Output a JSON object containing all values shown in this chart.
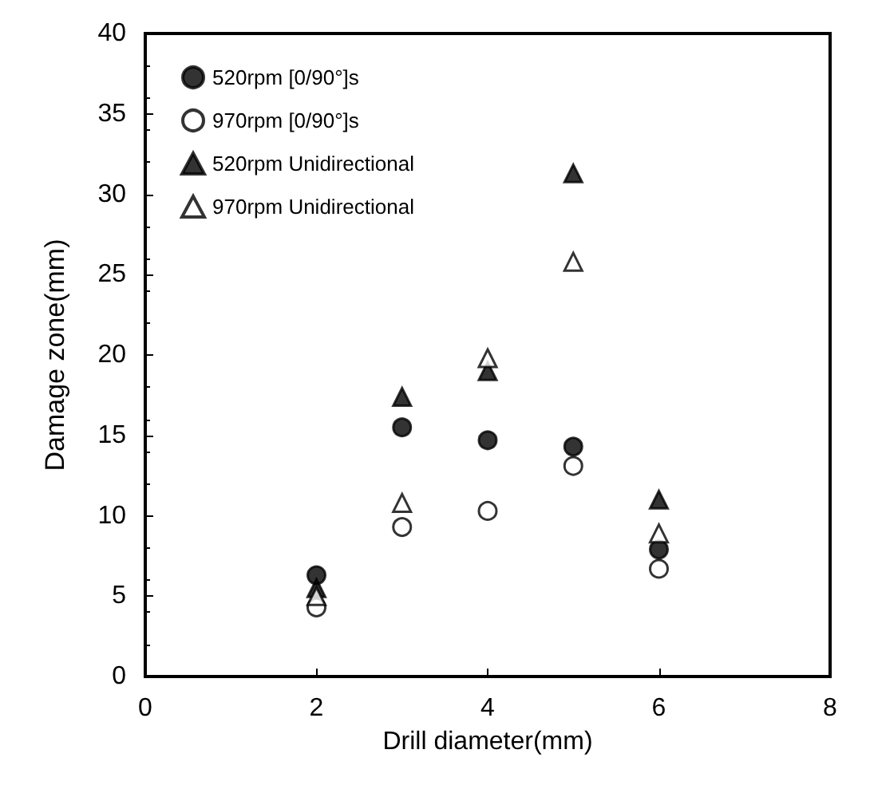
{
  "chart_data": {
    "type": "scatter",
    "xlabel": "Drill diameter(mm)",
    "ylabel": "Damage zone(mm)",
    "x": [
      2,
      3,
      4,
      5,
      6
    ],
    "xlim": [
      0,
      8
    ],
    "xticks": [
      0,
      2,
      4,
      6,
      8
    ],
    "ylim": [
      0,
      40
    ],
    "yticks": [
      0,
      5,
      10,
      15,
      20,
      25,
      30,
      35,
      40
    ],
    "grid": false,
    "legend": "top left",
    "series": [
      {
        "name": "520rpm [0/90°]s",
        "color": "#000000",
        "marker": "circle",
        "values": [
          6.3,
          15.5,
          14.7,
          14.3,
          7.9
        ]
      },
      {
        "name": "970rpm [0/90°]s",
        "color": "#ffffff",
        "marker": "circle",
        "values": [
          4.3,
          9.3,
          10.3,
          13.1,
          6.7
        ]
      },
      {
        "name": "520rpm Unidirectional",
        "color": "#000000",
        "marker": "triangle",
        "values": [
          5.5,
          17.4,
          19.0,
          31.3,
          11.0
        ]
      },
      {
        "name": "970rpm Unidirectional",
        "color": "#ffffff",
        "marker": "triangle",
        "values": [
          5.0,
          10.8,
          19.8,
          25.8,
          8.9
        ]
      }
    ]
  }
}
